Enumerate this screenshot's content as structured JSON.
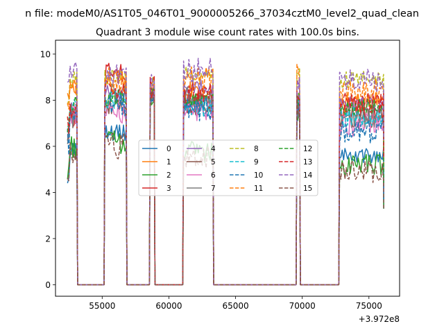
{
  "chart_data": {
    "type": "line",
    "suptitle": "n file: modeM0/AS1T05_046T01_9000005266_37034cztM0_level2_quad_clean",
    "title": "Quadrant 3 module wise count rates with 100.0s bins.",
    "xlabel": "",
    "ylabel": "",
    "offset_text": "+3.972e8",
    "xlim": [
      51500,
      77300
    ],
    "ylim": [
      -0.5,
      10.6
    ],
    "xticks": [
      55000,
      60000,
      65000,
      70000,
      75000
    ],
    "xtick_labels": [
      "55000",
      "60000",
      "65000",
      "70000",
      "75000"
    ],
    "yticks": [
      0,
      2,
      4,
      6,
      8,
      10
    ],
    "ytick_labels": [
      "0",
      "2",
      "4",
      "6",
      "8",
      "10"
    ],
    "grid": false,
    "legend_location": "center",
    "legend_columns": 4,
    "segments": [
      {
        "start": 52400,
        "end": 53100
      },
      {
        "start": 55200,
        "end": 56800
      },
      {
        "start": 58600,
        "end": 58900
      },
      {
        "start": 61100,
        "end": 63300
      },
      {
        "start": 69600,
        "end": 69800
      },
      {
        "start": 72800,
        "end": 76100
      }
    ],
    "series": [
      {
        "name": "0",
        "color": "#1f77b4",
        "dash": "solid",
        "levels": [
          5.9,
          6.6,
          8.3,
          7.6,
          7.9,
          5.6
        ]
      },
      {
        "name": "1",
        "color": "#ff7f0e",
        "dash": "solid",
        "levels": [
          8.7,
          8.9,
          8.4,
          8.4,
          7.8,
          7.9
        ]
      },
      {
        "name": "2",
        "color": "#2ca02c",
        "dash": "solid",
        "levels": [
          6.0,
          6.2,
          8.2,
          5.8,
          7.6,
          5.2
        ]
      },
      {
        "name": "3",
        "color": "#d62728",
        "dash": "solid",
        "levels": [
          7.3,
          9.1,
          8.6,
          7.9,
          7.8,
          7.6
        ]
      },
      {
        "name": "4",
        "color": "#9467bd",
        "dash": "solid",
        "levels": [
          7.6,
          8.3,
          8.5,
          8.6,
          8.0,
          7.8
        ]
      },
      {
        "name": "5",
        "color": "#8c564b",
        "dash": "solid",
        "levels": [
          7.2,
          7.7,
          8.3,
          7.8,
          7.9,
          7.2
        ]
      },
      {
        "name": "6",
        "color": "#e377c2",
        "dash": "solid",
        "levels": [
          7.4,
          7.5,
          8.2,
          7.6,
          7.8,
          6.9
        ]
      },
      {
        "name": "7",
        "color": "#7f7f7f",
        "dash": "solid",
        "levels": [
          7.4,
          8.2,
          8.3,
          8.0,
          7.8,
          7.4
        ]
      },
      {
        "name": "8",
        "color": "#bcbd22",
        "dash": "dashed",
        "levels": [
          8.9,
          9.0,
          8.7,
          9.1,
          9.2,
          8.9
        ]
      },
      {
        "name": "9",
        "color": "#17becf",
        "dash": "dashed",
        "levels": [
          7.7,
          8.0,
          8.3,
          7.7,
          7.9,
          7.3
        ]
      },
      {
        "name": "10",
        "color": "#1f77b4",
        "dash": "dashed",
        "levels": [
          7.1,
          7.8,
          8.3,
          7.6,
          7.8,
          6.6
        ]
      },
      {
        "name": "11",
        "color": "#ff7f0e",
        "dash": "dashed",
        "levels": [
          8.4,
          8.8,
          8.6,
          8.9,
          9.0,
          8.3
        ]
      },
      {
        "name": "12",
        "color": "#2ca02c",
        "dash": "dashed",
        "levels": [
          7.9,
          8.1,
          8.3,
          8.1,
          8.0,
          7.7
        ]
      },
      {
        "name": "13",
        "color": "#d62728",
        "dash": "dashed",
        "levels": [
          7.6,
          8.5,
          8.4,
          8.3,
          8.0,
          7.9
        ]
      },
      {
        "name": "14",
        "color": "#9467bd",
        "dash": "dashed",
        "levels": [
          9.3,
          9.2,
          8.9,
          9.3,
          8.9,
          8.9
        ]
      },
      {
        "name": "15",
        "color": "#8c564b",
        "dash": "dashed",
        "levels": [
          5.6,
          6.0,
          8.1,
          5.5,
          7.6,
          4.9
        ]
      }
    ]
  }
}
